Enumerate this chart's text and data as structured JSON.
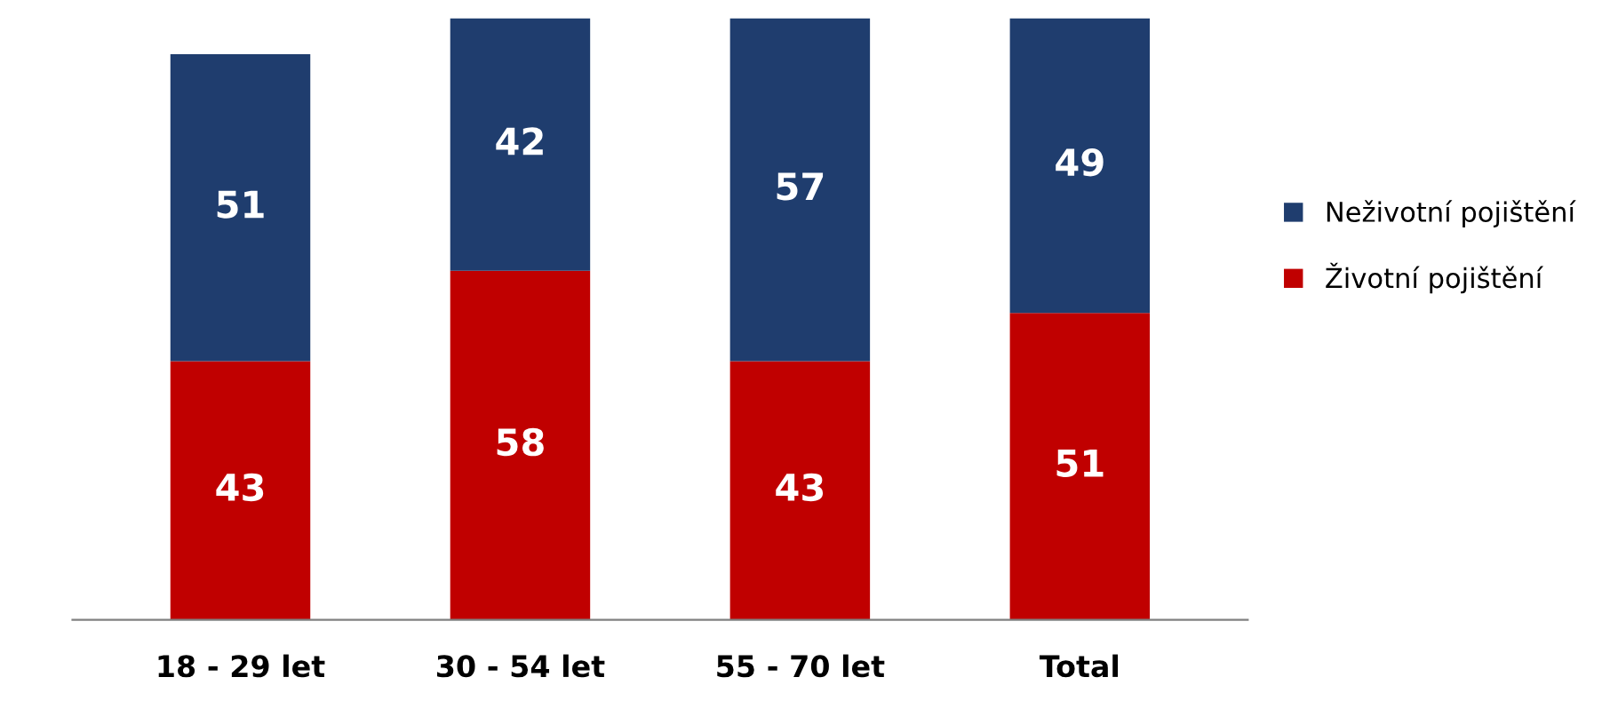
{
  "chart_data": {
    "type": "bar",
    "stacked": true,
    "categories": [
      "18 - 29 let",
      "30 - 54 let",
      "55 - 70 let",
      "Total"
    ],
    "series": [
      {
        "name": "Životní pojištění",
        "color": "#c00000",
        "values": [
          43,
          58,
          43,
          51
        ]
      },
      {
        "name": "Neživotní pojištění",
        "color": "#1f3d6e",
        "values": [
          51,
          42,
          57,
          49
        ]
      }
    ],
    "ylim": [
      0,
      100
    ],
    "tick_labels": "x",
    "data_labels": true,
    "legend": "right",
    "grid": false
  }
}
